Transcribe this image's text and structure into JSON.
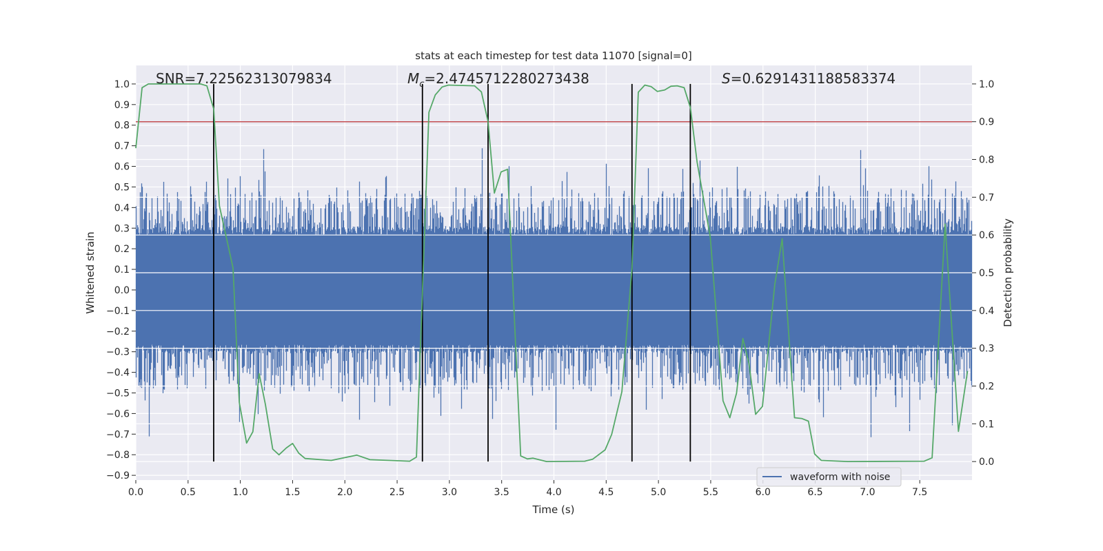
{
  "chart_data": {
    "type": "line",
    "title": "stats at each timestep for test data 11070 [signal=0]",
    "xlabel": "Time (s)",
    "ylabel": "Whitened strain",
    "ylabel_right": "Detection probability",
    "xlim": [
      0,
      8.0
    ],
    "ylim": [
      -0.923,
      1.09
    ],
    "ylim_right": [
      -0.049,
      1.049
    ],
    "grid": true,
    "legend": {
      "placement": "lower-right",
      "entries": [
        "waveform with noise"
      ]
    },
    "x_ticks": [
      "0.0",
      "0.5",
      "1.0",
      "1.5",
      "2.0",
      "2.5",
      "3.0",
      "3.5",
      "4.0",
      "4.5",
      "5.0",
      "5.5",
      "6.0",
      "6.5",
      "7.0",
      "7.5"
    ],
    "x_tick_values": [
      0,
      0.5,
      1,
      1.5,
      2,
      2.5,
      3,
      3.5,
      4,
      4.5,
      5,
      5.5,
      6,
      6.5,
      7,
      7.5
    ],
    "y_ticks": [
      "1.0",
      "0.9",
      "0.8",
      "0.7",
      "0.6",
      "0.5",
      "0.4",
      "0.3",
      "0.2",
      "0.1",
      "0.0",
      "−0.1",
      "−0.2",
      "−0.3",
      "−0.4",
      "−0.5",
      "−0.6",
      "−0.7",
      "−0.8",
      "−0.9"
    ],
    "y_tick_values": [
      1,
      0.9,
      0.8,
      0.7,
      0.6,
      0.5,
      0.4,
      0.3,
      0.2,
      0.1,
      0,
      -0.1,
      -0.2,
      -0.3,
      -0.4,
      -0.5,
      -0.6,
      -0.7,
      -0.8,
      -0.9
    ],
    "y_right_ticks": [
      "1.0",
      "0.9",
      "0.8",
      "0.7",
      "0.6",
      "0.5",
      "0.4",
      "0.3",
      "0.2",
      "0.1",
      "0.0"
    ],
    "y_right_tick_values": [
      1,
      0.9,
      0.8,
      0.7,
      0.6,
      0.5,
      0.4,
      0.3,
      0.2,
      0.1,
      0
    ],
    "annotations": {
      "snr": "SNR=7.22562313079834",
      "mc_symbol": "M",
      "mc_sub": "c",
      "mc_value": "=2.4745712280273438",
      "s_symbol": "S",
      "s_value": "=0.6291431188583374"
    },
    "series": [
      {
        "name": "waveform with noise",
        "axis": "left",
        "color": "#4c72b0",
        "kind": "noise",
        "core_amplitude": 0.28,
        "peak_amplitude": 1.0
      },
      {
        "name": "detection probability",
        "axis": "right",
        "color": "#55a868",
        "x": [
          0.0,
          0.06,
          0.12,
          0.62,
          0.68,
          0.745,
          0.8,
          0.93,
          0.99,
          1.06,
          1.12,
          1.18,
          1.24,
          1.31,
          1.37,
          1.44,
          1.5,
          1.56,
          1.62,
          1.87,
          2.115,
          2.24,
          2.62,
          2.685,
          2.804,
          2.865,
          2.93,
          2.99,
          3.24,
          3.306,
          3.37,
          3.43,
          3.495,
          3.557,
          3.682,
          3.746,
          3.8,
          3.93,
          4.295,
          4.37,
          4.49,
          4.553,
          4.65,
          4.747,
          4.807,
          4.87,
          4.93,
          4.99,
          5.06,
          5.12,
          5.18,
          5.246,
          5.306,
          5.37,
          5.496,
          5.618,
          5.683,
          5.747,
          5.808,
          5.866,
          5.93,
          5.995,
          6.113,
          6.184,
          6.302,
          6.37,
          6.435,
          6.494,
          6.558,
          6.81,
          7.543,
          7.618,
          7.743,
          7.87,
          7.957
        ],
        "y": [
          0.83,
          0.99,
          1.0,
          1.0,
          0.995,
          0.934,
          0.677,
          0.513,
          0.157,
          0.049,
          0.079,
          0.233,
          0.151,
          0.033,
          0.018,
          0.036,
          0.048,
          0.022,
          0.008,
          0.003,
          0.017,
          0.005,
          0.001,
          0.012,
          0.925,
          0.971,
          0.992,
          0.997,
          0.995,
          0.979,
          0.9,
          0.711,
          0.767,
          0.774,
          0.015,
          0.007,
          0.009,
          0.0,
          0.001,
          0.006,
          0.031,
          0.072,
          0.185,
          0.513,
          0.978,
          0.997,
          0.993,
          0.98,
          0.984,
          0.994,
          0.995,
          0.99,
          0.937,
          0.793,
          0.595,
          0.161,
          0.116,
          0.181,
          0.326,
          0.26,
          0.125,
          0.146,
          0.469,
          0.59,
          0.116,
          0.114,
          0.107,
          0.02,
          0.003,
          0.0,
          0.001,
          0.01,
          0.629,
          0.08,
          0.24
        ]
      },
      {
        "name": "threshold",
        "axis": "right",
        "color": "#c44e52",
        "value": 0.9
      },
      {
        "name": "event markers",
        "axis": "right",
        "color": "#000000",
        "x": [
          0.745,
          2.742,
          3.37,
          4.747,
          5.305
        ],
        "range": [
          0.0,
          1.0
        ]
      }
    ]
  }
}
